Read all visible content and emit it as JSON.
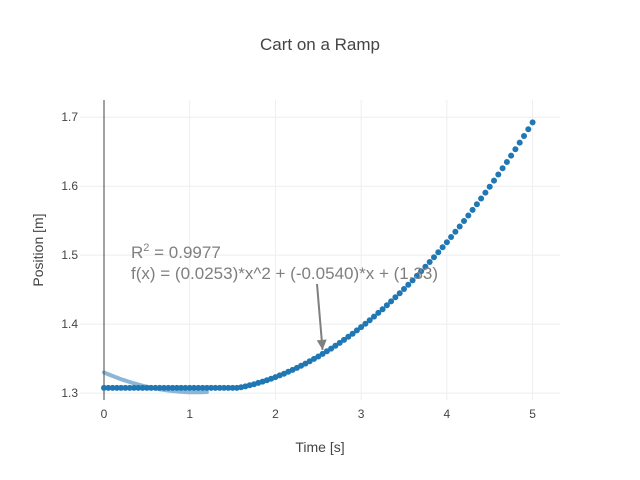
{
  "chart_data": {
    "type": "scatter",
    "title": "Cart on a Ramp",
    "xlabel": "Time [s]",
    "ylabel": "Position [m]",
    "xlim": [
      -0.28,
      5.32
    ],
    "ylim": [
      1.29,
      1.725
    ],
    "x_ticks": [
      0,
      1,
      2,
      3,
      4,
      5
    ],
    "y_ticks": [
      1.3,
      1.4,
      1.5,
      1.6,
      1.7
    ],
    "grid": true,
    "legend": "none",
    "fit": {
      "a": 0.0253,
      "b": -0.054,
      "c": 1.33,
      "x_range": [
        0,
        1.2
      ]
    },
    "flat_value": 1.3075,
    "flat_until": 1.45,
    "data_x_range": [
      0,
      5
    ],
    "data_step": 0.05,
    "annotation": {
      "r2_prefix": "R",
      "r2_sup": "2",
      "r2_value": " = 0.9977",
      "equation": "f(x) = (0.0253)*x^2 + (-0.0540)*x + (1.33)",
      "arrow_x": 2.55
    },
    "colors": {
      "points": "#1f77b4",
      "fit_line": "#8db6d6",
      "axis_line": "#444444",
      "grid": "#eeeeee",
      "annotation": "#7f7f7f",
      "arrow": "#7f7f7f"
    }
  }
}
